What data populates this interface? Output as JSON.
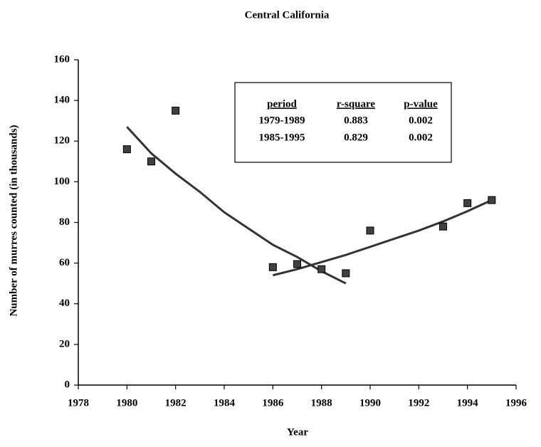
{
  "chart_data": {
    "type": "scatter",
    "title": "Central California",
    "xlabel": "Year",
    "ylabel": "Number of murres counted (in thousands)",
    "xlim": [
      1978,
      1996
    ],
    "xticks": [
      1978,
      1980,
      1982,
      1984,
      1986,
      1988,
      1990,
      1992,
      1994,
      1996
    ],
    "ylim": [
      0,
      160
    ],
    "yticks": [
      0,
      20,
      40,
      60,
      80,
      100,
      120,
      140,
      160
    ],
    "series": [
      {
        "type": "scatter",
        "color": "#404040",
        "x": [
          1980,
          1981,
          1982,
          1986,
          1987,
          1988,
          1989,
          1990,
          1993,
          1994,
          1995
        ],
        "values": [
          116,
          110,
          135,
          58,
          59.5,
          57,
          55,
          76,
          78,
          89.5,
          91
        ]
      },
      {
        "type": "line",
        "color": "#333333",
        "x": [
          1980,
          1981,
          1982,
          1983,
          1984,
          1985,
          1986,
          1987,
          1988,
          1989
        ],
        "values": [
          127,
          114,
          104,
          95,
          85,
          77,
          69,
          63,
          56,
          50
        ]
      },
      {
        "type": "line",
        "color": "#333333",
        "x": [
          1986,
          1987,
          1988,
          1989,
          1990,
          1991,
          1992,
          1993,
          1994,
          1995
        ],
        "values": [
          54,
          57,
          60.5,
          64,
          68,
          72,
          76,
          80.5,
          85.5,
          91
        ]
      }
    ],
    "table": {
      "headers": [
        "period",
        "r-square",
        "p-value"
      ],
      "rows": [
        [
          "1979-1989",
          "0.883",
          "0.002"
        ],
        [
          "1985-1995",
          "0.829",
          "0.002"
        ]
      ]
    }
  }
}
